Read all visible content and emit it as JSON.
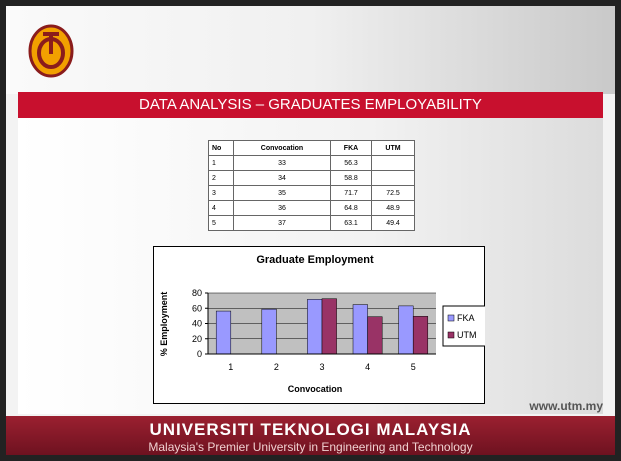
{
  "slide": {
    "title": "DATA ANALYSIS – GRADUATES EMPLOYABILITY",
    "url": "www.utm.my",
    "footer": {
      "name": "UNIVERSITI TEKNOLOGI MALAYSIA",
      "tagline": "Malaysia's Premier University in Engineering and Technology"
    }
  },
  "table": {
    "header": [
      "No",
      "Convocation",
      "FKA",
      "UTM"
    ],
    "rows": [
      [
        1,
        33,
        56.3,
        null
      ],
      [
        2,
        34,
        58.8,
        null
      ],
      [
        3,
        35,
        71.7,
        72.5
      ],
      [
        4,
        36,
        64.8,
        48.9
      ],
      [
        5,
        37,
        63.1,
        49.4
      ]
    ]
  },
  "chart_data": {
    "type": "bar",
    "title": "Graduate Employment",
    "x_label": "Convocation",
    "y_label": "% Employment",
    "categories": [
      "1",
      "2",
      "3",
      "4",
      "5"
    ],
    "series": [
      {
        "name": "FKA",
        "color": "#9999ff",
        "values": [
          56.3,
          58.8,
          71.7,
          64.8,
          63.1
        ]
      },
      {
        "name": "UTM",
        "color": "#993366",
        "values": [
          null,
          null,
          72.5,
          48.9,
          49.4
        ]
      }
    ],
    "ylim": [
      0,
      80
    ],
    "yticks": [
      0,
      20,
      40,
      60,
      80
    ],
    "grid": true,
    "legend": "right"
  }
}
